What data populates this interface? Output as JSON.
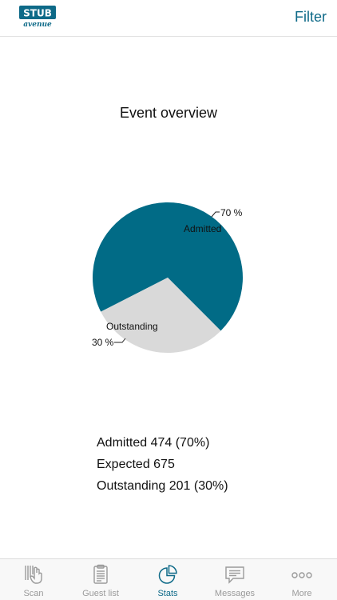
{
  "header": {
    "logo": {
      "icon": "stub-avenue-logo",
      "line1": "STUB",
      "line2": "avenue"
    },
    "filter_label": "Filter"
  },
  "chart_data": {
    "type": "pie",
    "title": "Event overview",
    "slices": [
      {
        "label": "Admitted",
        "value": 70,
        "pct_label": "70 %",
        "color": "#016b86"
      },
      {
        "label": "Outstanding",
        "value": 30,
        "pct_label": "30 %",
        "color": "#d9d9d9"
      }
    ]
  },
  "summary": {
    "admitted": "Admitted 474 (70%)",
    "expected": "Expected 675",
    "outstanding": "Outstanding 201 (30%)"
  },
  "tabs": [
    {
      "label": "Scan",
      "icon": "barcode-scan-icon",
      "active": false
    },
    {
      "label": "Guest list",
      "icon": "clipboard-icon",
      "active": false
    },
    {
      "label": "Stats",
      "icon": "pie-chart-icon",
      "active": true
    },
    {
      "label": "Messages",
      "icon": "message-icon",
      "active": false
    },
    {
      "label": "More",
      "icon": "more-dots-icon",
      "active": false
    }
  ],
  "colors": {
    "accent": "#0e6a88",
    "tab_inactive": "#9a9a9a"
  }
}
